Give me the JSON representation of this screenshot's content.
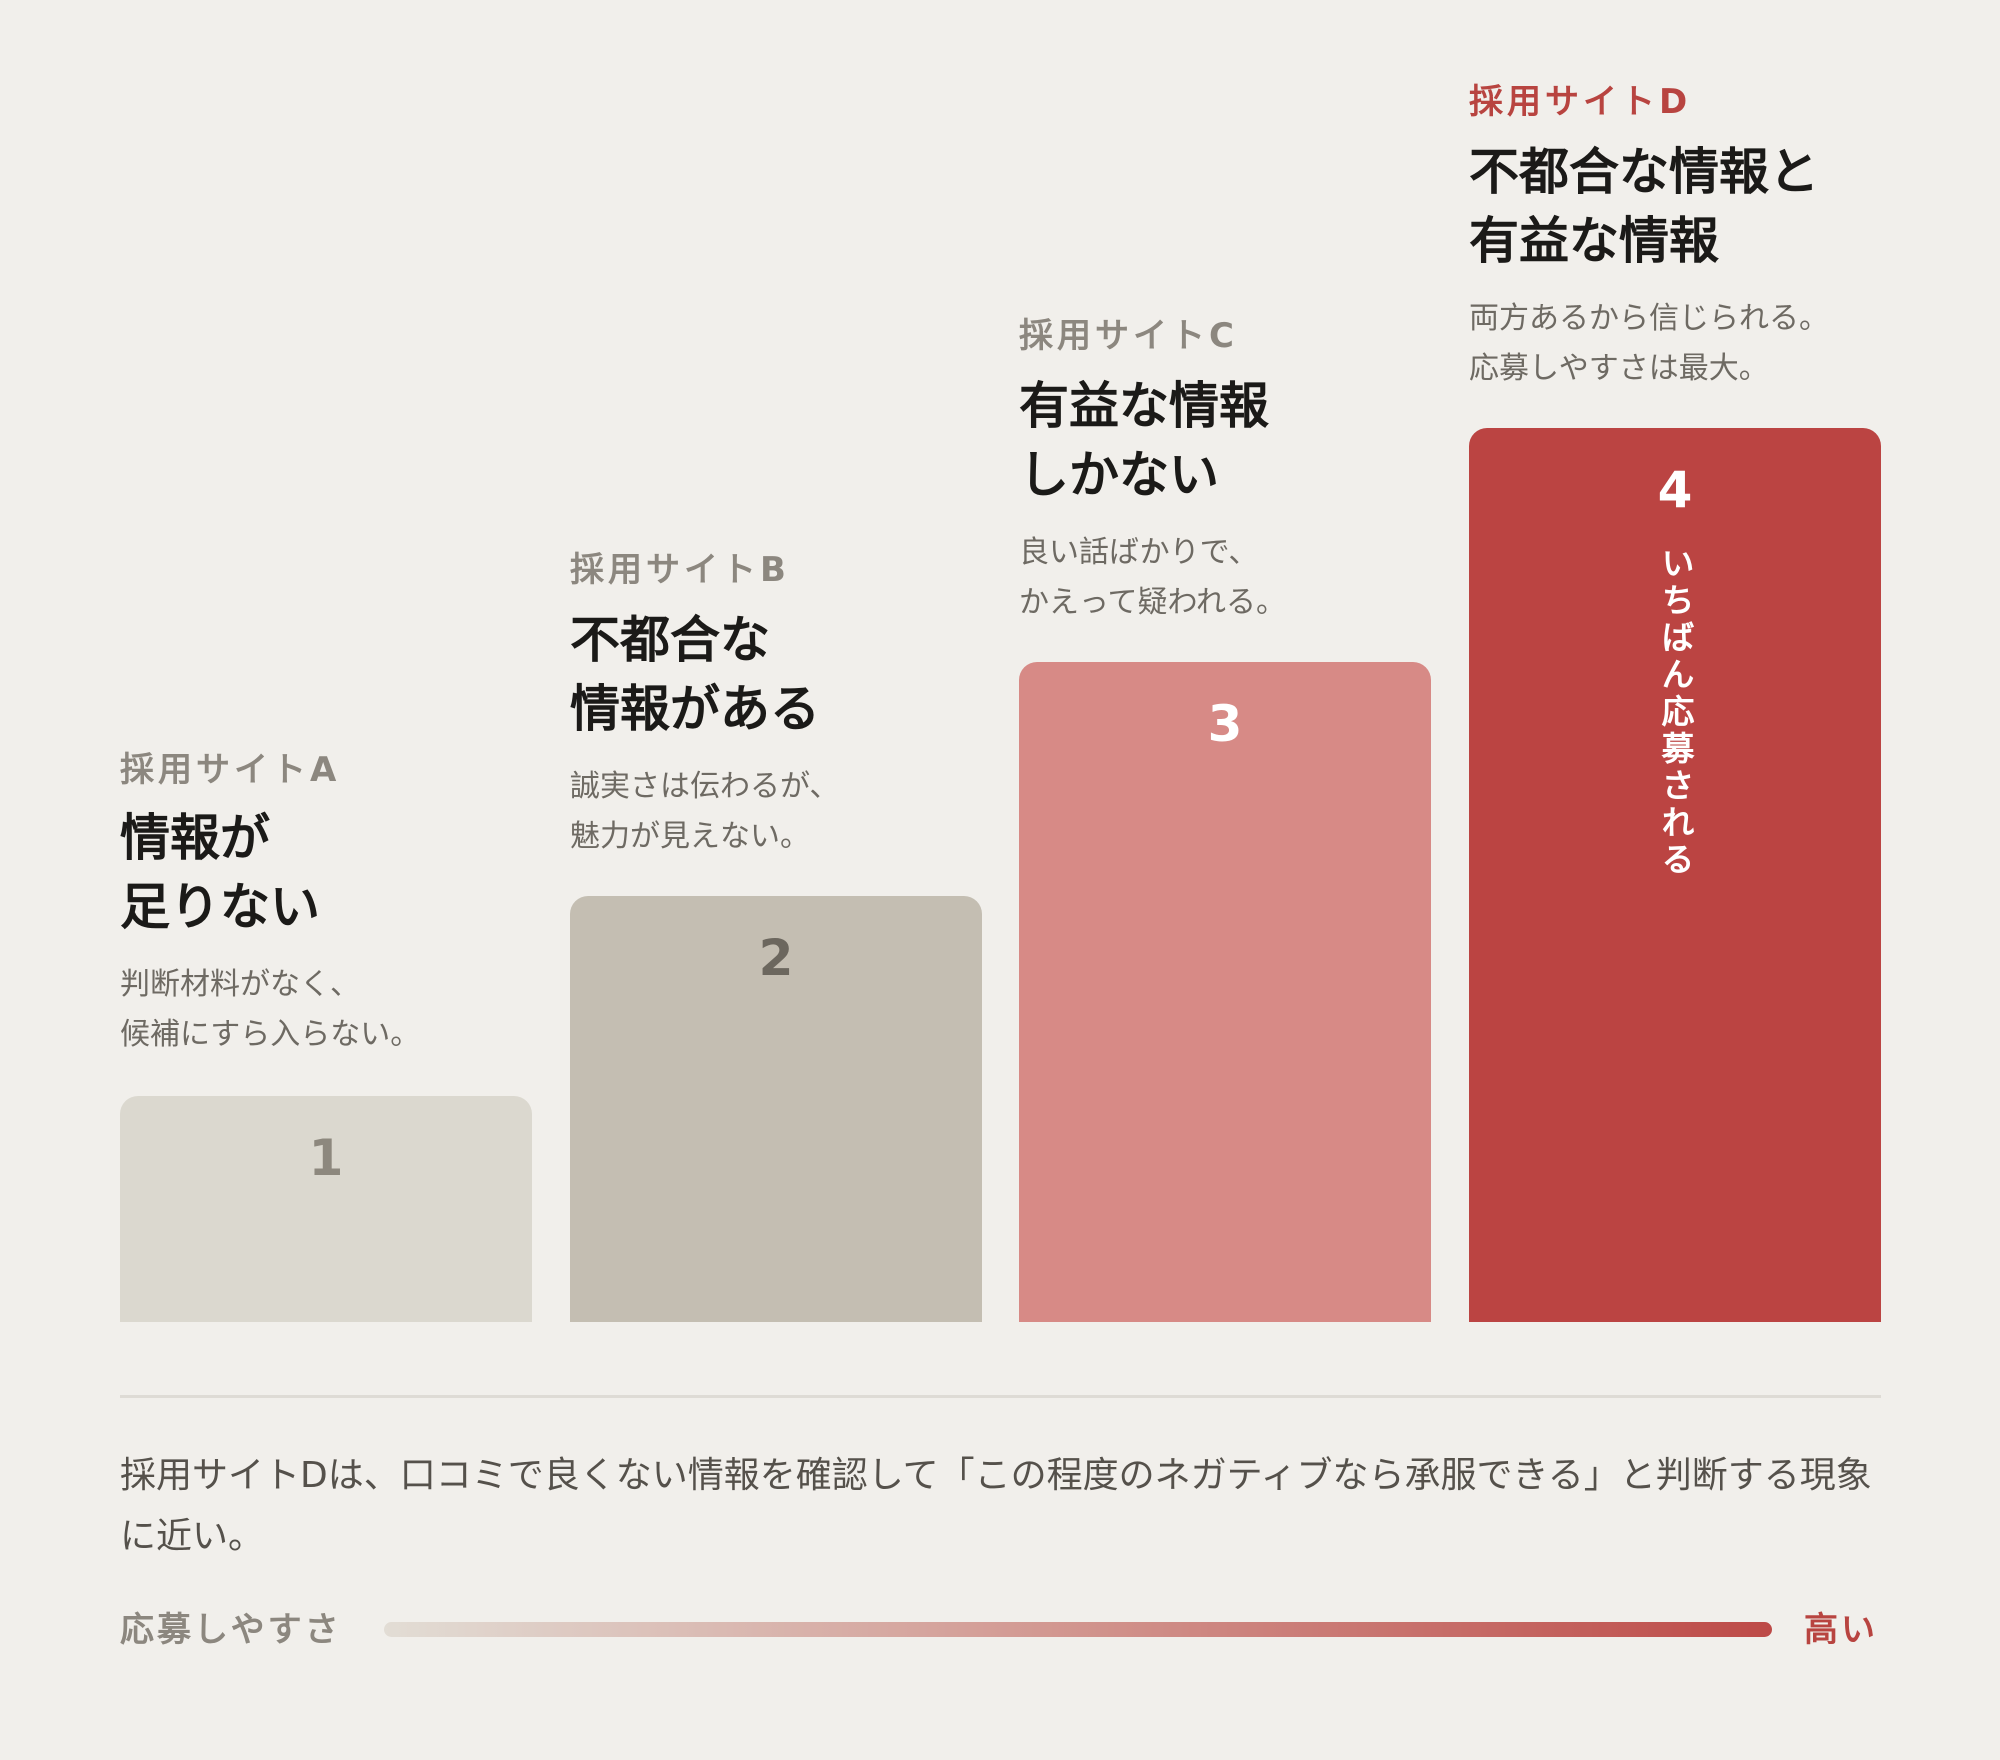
{
  "columns": [
    {
      "id": "a",
      "site": "採用サイトA",
      "headline": [
        "情報が",
        "足りない"
      ],
      "description": [
        "判断材料がなく、",
        "候補にすら入らない。"
      ],
      "rank": "1"
    },
    {
      "id": "b",
      "site": "採用サイトB",
      "headline": [
        "不都合な",
        "情報がある"
      ],
      "description": [
        "誠実さは伝わるが、",
        "魅力が見えない。"
      ],
      "rank": "2"
    },
    {
      "id": "c",
      "site": "採用サイトC",
      "headline": [
        "有益な情報",
        "しかない"
      ],
      "description": [
        "良い話ばかりで、",
        "かえって疑われる。"
      ],
      "rank": "3"
    },
    {
      "id": "d",
      "site": "採用サイトD",
      "headline": [
        "不都合な情報と",
        "有益な情報"
      ],
      "description": [
        "両方あるから信じられる。",
        "応募しやすさは最大。"
      ],
      "rank": "4",
      "bar_caption": "いちばん応募される"
    }
  ],
  "note": "採用サイトDは、口コミで良くない情報を確認して「この程度のネガティブなら承服できる」と判断する現象に近い。",
  "scale": {
    "label": "応募しやすさ",
    "high_label": "高い"
  },
  "colors": {
    "background": "#f1efeb",
    "bar_a": "#dbd8cf",
    "bar_b": "#c4beb2",
    "bar_c": "#d78a86",
    "bar_d": "#bb4442",
    "accent": "#b84440"
  }
}
